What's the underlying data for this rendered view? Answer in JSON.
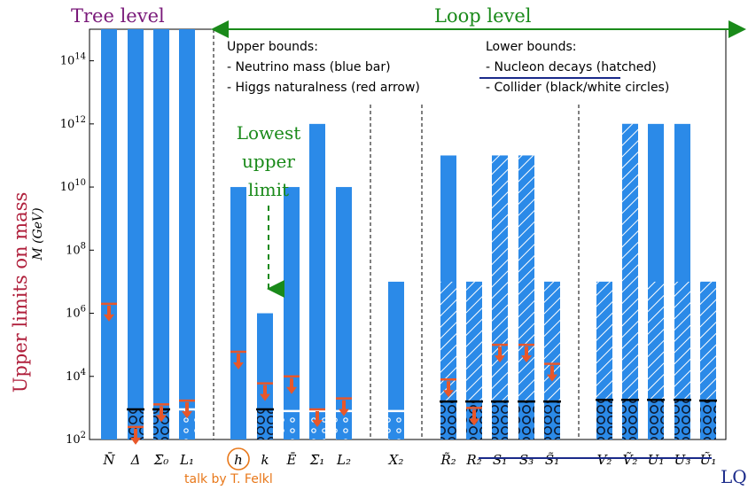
{
  "headings": {
    "tree_level": "Tree level",
    "loop_level": "Loop level",
    "y_axis_side": "Upper limits on mass",
    "y_axis": "M (GeV)",
    "talk": "talk by T. Felkl",
    "lq": "LQ"
  },
  "legend": {
    "upper_title": "Upper bounds:",
    "upper_1": "- Neutrino mass (blue bar)",
    "upper_2": "- Higgs naturalness (red arrow)",
    "lower_title": "Lower bounds:",
    "lower_1": "- Nucleon decays (hatched)",
    "lower_2": "- Collider (black/white circles)"
  },
  "annotation": {
    "line1": "Lowest",
    "line2": "upper",
    "line3": "limit"
  },
  "colors": {
    "bar": "#2b8ae8",
    "arrow": "#e8572a",
    "tree": "#7a1a7a",
    "loop": "#1a8a1a",
    "side": "#b0203c",
    "talk": "#e8781a",
    "lq": "#1a2a8a"
  },
  "chart_data": {
    "type": "bar",
    "yscale": "log",
    "ylim": [
      100,
      1000000000000000.0
    ],
    "yticks": [
      "10^2",
      "10^4",
      "10^6",
      "10^8",
      "10^10",
      "10^12",
      "10^14"
    ],
    "categories": [
      "N̄",
      "Δ",
      "Σ̄₀",
      "L₁",
      "h",
      "k",
      "Ē",
      "Σ̄₁",
      "L₂",
      "X₂",
      "R̃₂",
      "R₂",
      "S₁",
      "S₃",
      "S̃₁",
      "V₂",
      "Ṽ₂",
      "U₁",
      "U₃",
      "Ũ₁"
    ],
    "series": [
      {
        "name": "Neutrino mass (blue bar)",
        "values": [
          1000000000000000.0,
          1000000000000000.0,
          1000000000000000.0,
          1000000000000000.0,
          10000000000.0,
          1000000.0,
          10000000000.0,
          1000000000000.0,
          10000000000.0,
          10000000.0,
          100000000000.0,
          10000000.0,
          100000000000.0,
          100000000000.0,
          10000000.0,
          10000000.0,
          1000000000000.0,
          1000000000000.0,
          1000000000000.0,
          10000000.0
        ]
      },
      {
        "name": "Higgs naturalness (red arrow)",
        "values": [
          2000000.0,
          250,
          1300,
          1700,
          60000.0,
          6000,
          10000.0,
          900,
          2000,
          null,
          8000,
          1000,
          100000.0,
          100000.0,
          25000.0,
          null,
          null,
          null,
          null,
          null
        ]
      },
      {
        "name": "Nucleon decays (hatched)",
        "values": [
          null,
          null,
          null,
          null,
          null,
          null,
          null,
          null,
          null,
          null,
          10000000.0,
          10000000.0,
          100000000000.0,
          100000000000.0,
          10000000.0,
          10000000.0,
          1000000000000.0,
          10000000.0,
          10000000.0,
          10000000.0
        ]
      },
      {
        "name": "Collider (black/white circles)",
        "values": [
          null,
          900,
          900,
          900,
          null,
          900,
          800,
          800,
          800,
          800,
          1600,
          1600,
          1600,
          1600,
          1600,
          1800,
          1800,
          1800,
          1800,
          1700
        ]
      }
    ]
  }
}
